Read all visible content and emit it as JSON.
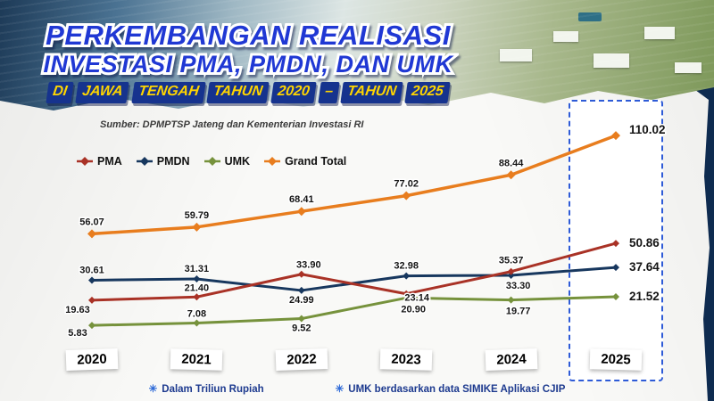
{
  "header": {
    "title_line1": "PERKEMBANGAN REALISASI",
    "title_line2": "INVESTASI PMA, PMDN, DAN UMK",
    "title_line3_words": [
      "DI",
      "JAWA",
      "TENGAH",
      "TAHUN",
      "2020",
      "–",
      "TAHUN",
      "2025"
    ],
    "source": "Sumber: DPMPTSP Jateng dan Kementerian Investasi RI"
  },
  "chart_data": {
    "type": "line",
    "title": "Perkembangan Realisasi Investasi PMA, PMDN, dan UMK di Jawa Tengah Tahun 2020 - Tahun 2025",
    "categories": [
      "2020",
      "2021",
      "2022",
      "2023",
      "2024",
      "2025"
    ],
    "series": [
      {
        "name": "PMA",
        "color": "#a93226",
        "values": [
          19.63,
          21.4,
          33.9,
          23.14,
          35.37,
          50.86
        ]
      },
      {
        "name": "PMDN",
        "color": "#17375e",
        "values": [
          30.61,
          31.31,
          24.99,
          32.98,
          33.3,
          37.64
        ]
      },
      {
        "name": "UMK",
        "color": "#76923c",
        "values": [
          5.83,
          7.08,
          9.52,
          20.9,
          19.77,
          21.52
        ]
      },
      {
        "name": "Grand Total",
        "color": "#e87d1e",
        "values": [
          56.07,
          59.79,
          68.41,
          77.02,
          88.44,
          110.02
        ]
      }
    ],
    "ylim": [
      0,
      120
    ],
    "units": "Triliun Rupiah",
    "grid": false,
    "legend_position": "top-left",
    "highlight_category": "2025"
  },
  "footer": {
    "note1": "Dalam Triliun Rupiah",
    "note2": "UMK berdasarkan data SIMIKE Aplikasi CJIP"
  },
  "icons": {
    "asterisk": "✳"
  },
  "colors": {
    "title_blue": "#2038d4",
    "chip_navy": "#16338e",
    "chip_yellow": "#ffd500",
    "background_navy": "#0e2b50",
    "paper": "#f9f9f7",
    "highlight_border": "#2e5bd7"
  }
}
